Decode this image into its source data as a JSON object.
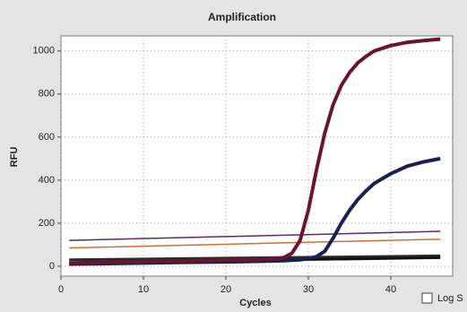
{
  "chart_data": {
    "type": "line",
    "title": "Amplification",
    "x_label": "Cycles",
    "y_label": "RFU",
    "xlim": [
      0,
      47.5
    ],
    "ylim": [
      -46,
      1070
    ],
    "xticks": [
      0,
      10,
      20,
      30,
      40
    ],
    "yticks": [
      0,
      200,
      400,
      600,
      800,
      1000
    ],
    "grid": true,
    "log_scale_option": "Log S",
    "series": [
      {
        "color": "#2a2a2a",
        "x": [
          1,
          46
        ],
        "values": [
          30,
          48
        ]
      },
      {
        "color": "#111111",
        "x": [
          1,
          46
        ],
        "values": [
          15,
          40
        ]
      },
      {
        "color": "#5a2a6a",
        "x": [
          1,
          46
        ],
        "values": [
          120,
          162
        ]
      },
      {
        "color": "#d07030",
        "x": [
          1,
          46
        ],
        "values": [
          85,
          126
        ]
      },
      {
        "color": "#1a2050",
        "x": [
          1,
          5,
          10,
          15,
          20,
          25,
          27,
          28,
          29,
          30,
          31,
          32,
          33,
          34,
          35,
          36,
          37,
          38,
          40,
          42,
          44,
          46
        ],
        "values": [
          10,
          12,
          15,
          18,
          20,
          24,
          26,
          28,
          30,
          35,
          45,
          70,
          130,
          200,
          260,
          310,
          350,
          385,
          430,
          465,
          485,
          500
        ]
      },
      {
        "color": "#6a1530",
        "x": [
          1,
          5,
          10,
          15,
          20,
          25,
          27,
          28,
          29,
          30,
          31,
          32,
          33,
          34,
          35,
          36,
          37,
          38,
          40,
          42,
          44,
          46
        ],
        "values": [
          15,
          18,
          22,
          25,
          28,
          32,
          40,
          60,
          120,
          260,
          450,
          620,
          750,
          840,
          900,
          945,
          975,
          1000,
          1025,
          1040,
          1048,
          1055
        ]
      }
    ]
  }
}
